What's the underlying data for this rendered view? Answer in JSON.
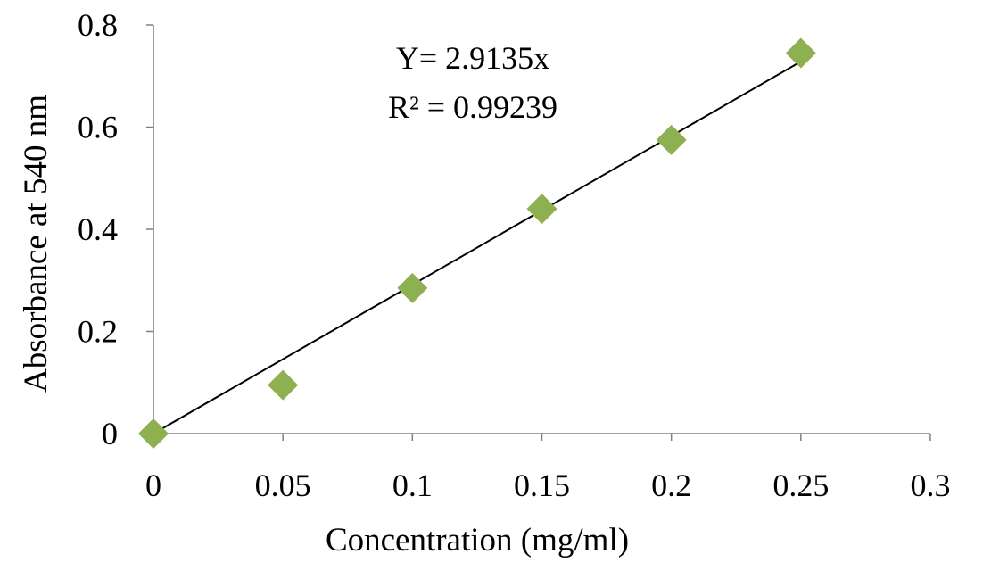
{
  "chart_data": {
    "type": "scatter",
    "title": "",
    "xlabel": "Concentration (mg/ml)",
    "ylabel": "Absorbance at 540 nm",
    "xlim": [
      0,
      0.3
    ],
    "ylim": [
      0,
      0.8
    ],
    "x_ticks": [
      "0",
      "0.05",
      "0.1",
      "0.15",
      "0.2",
      "0.25",
      "0.3"
    ],
    "y_ticks": [
      "0",
      "0.2",
      "0.4",
      "0.6",
      "0.8"
    ],
    "grid": false,
    "legend": "none",
    "series": [
      {
        "marker": "diamond",
        "color": "#8db050",
        "x": [
          0,
          0.05,
          0.1,
          0.15,
          0.2,
          0.25
        ],
        "y": [
          0,
          0.095,
          0.285,
          0.44,
          0.575,
          0.745
        ]
      }
    ],
    "trendline": {
      "slope": 2.9135,
      "intercept": 0,
      "x_range": [
        0,
        0.25
      ],
      "color": "#000000"
    },
    "annotations": {
      "equation": "Y= 2.9135x",
      "r_squared": "R² = 0.99239"
    }
  }
}
